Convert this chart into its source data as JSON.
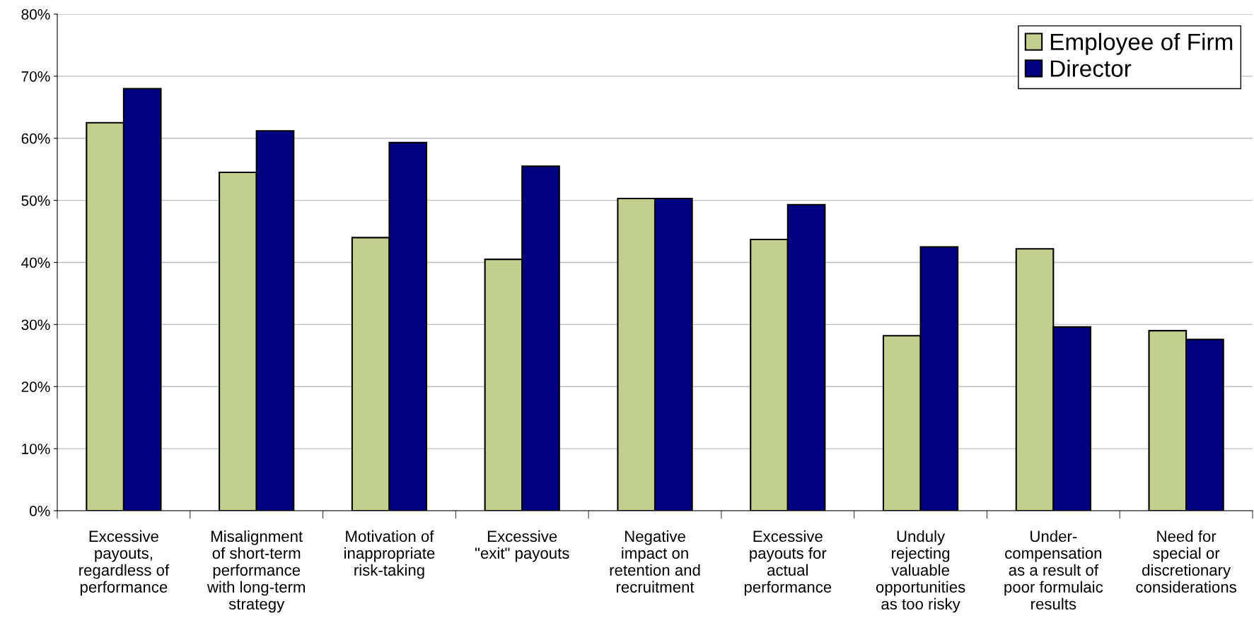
{
  "chart_data": {
    "type": "bar",
    "categories": [
      "Excessive\npayouts,\nregardless of\nperformance",
      "Misalignment\nof short-term\nperformance\nwith long-term\nstrategy",
      "Motivation of\ninappropriate\nrisk-taking",
      "Excessive\n\"exit\" payouts",
      "Negative\nimpact on\nretention and\nrecruitment",
      "Excessive\npayouts for\nactual\nperformance",
      "Unduly\nrejecting\nvaluable\nopportunities\nas too risky",
      "Under-\ncompensation\nas a result of\npoor formulaic\nresults",
      "Need for\nspecial or\ndiscretionary\nconsiderations"
    ],
    "series": [
      {
        "name": "Employee of Firm",
        "color": "#c3cf8f",
        "values": [
          62.5,
          54.5,
          44,
          40.5,
          50.3,
          43.7,
          28.2,
          42.2,
          29
        ]
      },
      {
        "name": "Director",
        "color": "#000080",
        "values": [
          68,
          61.2,
          59.3,
          55.5,
          50.3,
          49.3,
          42.5,
          29.6,
          27.6
        ]
      }
    ],
    "ylim": [
      0,
      80
    ],
    "yticks": [
      {
        "value": 0,
        "label": "0%"
      },
      {
        "value": 10,
        "label": "10%"
      },
      {
        "value": 20,
        "label": "20%"
      },
      {
        "value": 30,
        "label": "30%"
      },
      {
        "value": 40,
        "label": "40%"
      },
      {
        "value": 50,
        "label": "50%"
      },
      {
        "value": 60,
        "label": "60%"
      },
      {
        "value": 70,
        "label": "70%"
      },
      {
        "value": 80,
        "label": "80%"
      }
    ],
    "grid": "y",
    "legend": "top right"
  }
}
